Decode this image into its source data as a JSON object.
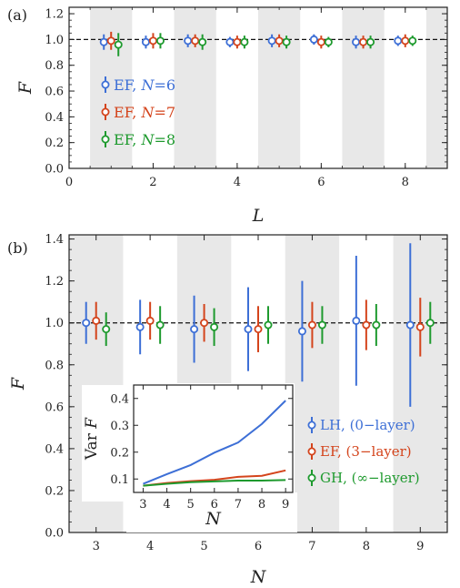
{
  "colors": {
    "EF": "#d4441c",
    "GH": "#1e9a2e",
    "LH": "#3d6fd6",
    "band": "#e8e8e8"
  },
  "chart_data": [
    {
      "panel": "(a)",
      "type": "scatter",
      "xlabel": "L",
      "ylabel": "F",
      "xlim": [
        0,
        9
      ],
      "ylim": [
        0,
        1.25
      ],
      "xticks": [
        "0",
        "2",
        "4",
        "6",
        "8"
      ],
      "xtick_values": [
        0,
        2,
        4,
        6,
        8
      ],
      "yticks": [
        "0.0",
        "0.2",
        "0.4",
        "0.6",
        "0.8",
        "1.0",
        "1.2"
      ],
      "ytick_values": [
        0,
        0.2,
        0.4,
        0.6,
        0.8,
        1.0,
        1.2
      ],
      "shaded_bands": [
        [
          0.5,
          1.5
        ],
        [
          2.5,
          3.5
        ],
        [
          4.5,
          5.5
        ],
        [
          6.5,
          7.5
        ],
        [
          8.5,
          9
        ]
      ],
      "reference_line": 1.0,
      "x": [
        1,
        2,
        3,
        4,
        5,
        6,
        7,
        8
      ],
      "series": [
        {
          "name": "EF, N=6",
          "color": "EF_blue",
          "values": [
            0.98,
            0.98,
            0.99,
            0.98,
            0.99,
            1.0,
            0.98,
            0.99
          ],
          "err": [
            0.06,
            0.05,
            0.05,
            0.04,
            0.05,
            0.04,
            0.05,
            0.04
          ]
        },
        {
          "name": "EF, N=7",
          "color": "EF_red",
          "values": [
            0.99,
            0.99,
            0.99,
            0.98,
            0.99,
            0.98,
            0.98,
            0.99
          ],
          "err": [
            0.07,
            0.06,
            0.05,
            0.05,
            0.05,
            0.05,
            0.05,
            0.05
          ]
        },
        {
          "name": "EF, N=8",
          "color": "EF_green",
          "values": [
            0.96,
            0.99,
            0.98,
            0.98,
            0.98,
            0.98,
            0.98,
            0.99
          ],
          "err": [
            0.09,
            0.06,
            0.06,
            0.05,
            0.05,
            0.04,
            0.05,
            0.04
          ]
        }
      ],
      "legend": {
        "position": "left",
        "entries": [
          {
            "prefix": "EF, ",
            "var": "N",
            "suffix": "=6"
          },
          {
            "prefix": "EF, ",
            "var": "N",
            "suffix": "=7"
          },
          {
            "prefix": "EF, ",
            "var": "N",
            "suffix": "=8"
          }
        ]
      }
    },
    {
      "panel": "(b)",
      "type": "scatter",
      "xlabel": "N",
      "ylabel": "F",
      "xlim": [
        2.5,
        9.5
      ],
      "ylim": [
        0,
        1.42
      ],
      "xticks": [
        "3",
        "4",
        "5",
        "6",
        "7",
        "8",
        "9"
      ],
      "xtick_values": [
        3,
        4,
        5,
        6,
        7,
        8,
        9
      ],
      "yticks": [
        "0.0",
        "0.2",
        "0.4",
        "0.6",
        "0.8",
        "1.0",
        "1.2",
        "1.4"
      ],
      "ytick_values": [
        0,
        0.2,
        0.4,
        0.6,
        0.8,
        1.0,
        1.2,
        1.4
      ],
      "shaded_bands": [
        [
          2.5,
          3.5
        ],
        [
          4.5,
          5.5
        ],
        [
          6.5,
          7.5
        ],
        [
          8.5,
          9.5
        ]
      ],
      "reference_line": 1.0,
      "x": [
        3,
        4,
        5,
        6,
        7,
        8,
        9
      ],
      "series": [
        {
          "name": "LH, (0−layer)",
          "color": "LH",
          "values": [
            1.0,
            0.98,
            0.97,
            0.97,
            0.96,
            1.01,
            0.99
          ],
          "err": [
            0.1,
            0.13,
            0.16,
            0.2,
            0.24,
            0.31,
            0.39
          ]
        },
        {
          "name": "EF, (3−layer)",
          "color": "EF",
          "values": [
            1.01,
            1.01,
            1.0,
            0.97,
            0.99,
            0.99,
            0.98
          ],
          "err": [
            0.09,
            0.09,
            0.09,
            0.11,
            0.11,
            0.12,
            0.14
          ]
        },
        {
          "name": "GH, (∞−layer)",
          "color": "GH",
          "values": [
            0.97,
            0.99,
            0.98,
            0.99,
            0.99,
            0.99,
            1.0
          ],
          "err": [
            0.08,
            0.09,
            0.09,
            0.09,
            0.09,
            0.1,
            0.1
          ]
        }
      ],
      "legend": {
        "position": "bottom-right",
        "entries": [
          {
            "label": "LH, (0−layer)",
            "color": "LH"
          },
          {
            "label": "EF, (3−layer)",
            "color": "EF"
          },
          {
            "label": "GH, (∞−layer)",
            "color": "GH"
          }
        ]
      },
      "inset": {
        "type": "line",
        "xlabel": "N",
        "ylabel": "Var F",
        "xlim": [
          2.6,
          9.3
        ],
        "ylim": [
          0.05,
          0.45
        ],
        "xticks": [
          "3",
          "4",
          "5",
          "6",
          "7",
          "8",
          "9"
        ],
        "xtick_values": [
          3,
          4,
          5,
          6,
          7,
          8,
          9
        ],
        "yticks": [
          "0.1",
          "0.2",
          "0.3",
          "0.4"
        ],
        "ytick_values": [
          0.1,
          0.2,
          0.3,
          0.4
        ],
        "x": [
          3,
          4,
          5,
          6,
          7,
          8,
          9
        ],
        "series": [
          {
            "color": "LH",
            "values": [
              0.082,
              0.118,
              0.152,
              0.198,
              0.236,
              0.305,
              0.392
            ]
          },
          {
            "color": "EF",
            "values": [
              0.075,
              0.085,
              0.092,
              0.097,
              0.108,
              0.112,
              0.132
            ]
          },
          {
            "color": "GH",
            "values": [
              0.075,
              0.082,
              0.088,
              0.091,
              0.094,
              0.094,
              0.096
            ]
          }
        ]
      }
    }
  ]
}
